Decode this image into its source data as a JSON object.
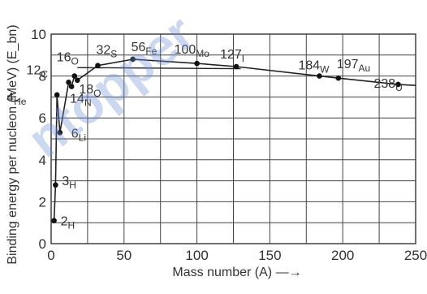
{
  "watermark": "ntopper",
  "chart_data": {
    "type": "line",
    "xlabel": "Mass number (A)",
    "ylabel": "Binding energy per nucleon (MeV) (E_bn)",
    "xlim": [
      0,
      250
    ],
    "ylim": [
      0,
      10
    ],
    "xticks": [
      "0",
      "50",
      "100",
      "150",
      "200",
      "250"
    ],
    "yticks": [
      "0",
      "2",
      "4",
      "6",
      "8",
      "10"
    ],
    "grid": true,
    "points": [
      {
        "A": 2,
        "E": 1.1,
        "mass": "2",
        "sym": "H"
      },
      {
        "A": 3,
        "E": 2.8,
        "mass": "3",
        "sym": "H"
      },
      {
        "A": 4,
        "E": 7.1,
        "mass": "4",
        "sym": "He"
      },
      {
        "A": 6,
        "E": 5.3,
        "mass": "6",
        "sym": "Li"
      },
      {
        "A": 12,
        "E": 7.7,
        "mass": "12",
        "sym": "C"
      },
      {
        "A": 14,
        "E": 7.5,
        "mass": "14",
        "sym": "N"
      },
      {
        "A": 16,
        "E": 8.0,
        "mass": "16",
        "sym": "O"
      },
      {
        "A": 18,
        "E": 7.8,
        "mass": "18",
        "sym": "O"
      },
      {
        "A": 32,
        "E": 8.5,
        "mass": "32",
        "sym": "S"
      },
      {
        "A": 56,
        "E": 8.8,
        "mass": "56",
        "sym": "Fe"
      },
      {
        "A": 100,
        "E": 8.6,
        "mass": "100",
        "sym": "Mo"
      },
      {
        "A": 127,
        "E": 8.45,
        "mass": "127",
        "sym": "I"
      },
      {
        "A": 184,
        "E": 8.0,
        "mass": "184",
        "sym": "W"
      },
      {
        "A": 197,
        "E": 7.9,
        "mass": "197",
        "sym": "Au"
      },
      {
        "A": 238,
        "E": 7.6,
        "mass": "238",
        "sym": "U"
      }
    ],
    "curve": [
      [
        2,
        1.1
      ],
      [
        3,
        2.8
      ],
      [
        4,
        7.1
      ],
      [
        6,
        5.3
      ],
      [
        12,
        7.7
      ],
      [
        14,
        7.5
      ],
      [
        16,
        8.0
      ],
      [
        18,
        7.8
      ],
      [
        32,
        8.5
      ],
      [
        56,
        8.8
      ],
      [
        100,
        8.6
      ],
      [
        127,
        8.45
      ],
      [
        184,
        8.0
      ],
      [
        197,
        7.9
      ],
      [
        238,
        7.6
      ],
      [
        250,
        7.55
      ]
    ]
  }
}
